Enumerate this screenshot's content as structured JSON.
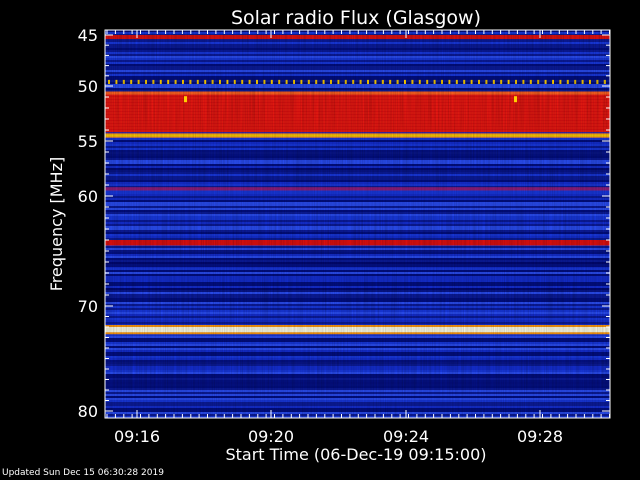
{
  "chart_data": {
    "type": "heatmap",
    "title": "Solar radio Flux (Glasgow)",
    "xlabel": "Start Time (06-Dec-19 09:15:00)",
    "ylabel": "Frequency [MHz]",
    "x_ticks": [
      "09:16",
      "09:20",
      "09:24",
      "09:28"
    ],
    "y_ticks": [
      "45",
      "50",
      "55",
      "60",
      "70",
      "80"
    ],
    "y_tick_values": [
      45,
      50,
      55,
      60,
      70,
      80
    ],
    "y_scale": "nonlinear (frequency axis compressed toward top)",
    "grid": false,
    "colormap": "blue-red-yellow-white",
    "bands": [
      {
        "mhz_from": 45.0,
        "mhz_to": 45.4,
        "level": "red"
      },
      {
        "mhz_from": 49.4,
        "mhz_to": 49.8,
        "level": "yellow-dotted"
      },
      {
        "mhz_from": 50.5,
        "mhz_to": 54.2,
        "level": "red"
      },
      {
        "mhz_from": 54.3,
        "mhz_to": 54.7,
        "level": "yellow"
      },
      {
        "mhz_from": 59.2,
        "mhz_to": 59.5,
        "level": "magenta"
      },
      {
        "mhz_from": 64.0,
        "mhz_to": 64.5,
        "level": "red"
      },
      {
        "mhz_from": 72.0,
        "mhz_to": 72.5,
        "level": "white"
      }
    ]
  },
  "footer": {
    "updated_text": "Updated Sun Dec 15 06:30:28 2019"
  },
  "colors": {
    "background": "#000000",
    "text": "#ffffff",
    "blue_dark": "#000a7a",
    "blue_mid": "#1530d8",
    "blue_light": "#2f55ff",
    "red": "#e01010",
    "magenta": "#a0207a",
    "yellow": "#ffd000",
    "white": "#ffffe8"
  }
}
